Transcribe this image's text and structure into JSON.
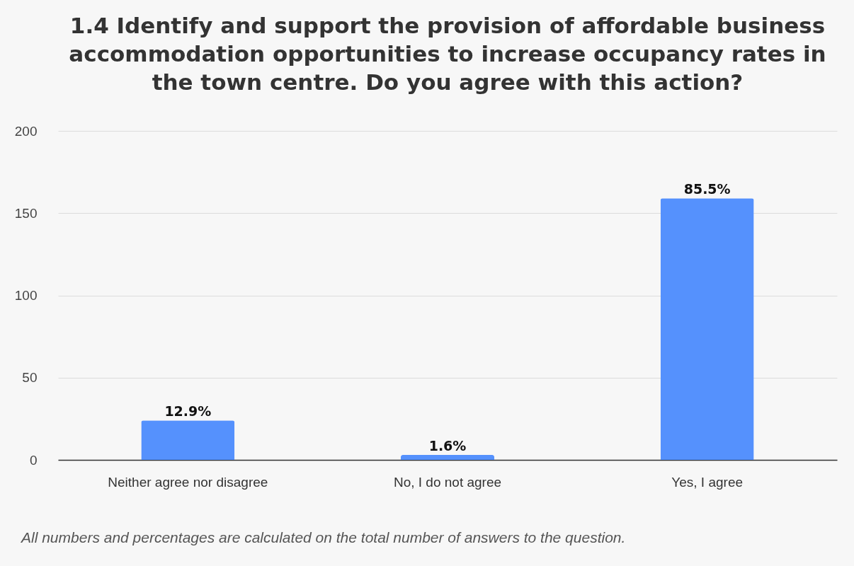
{
  "chart_data": {
    "type": "bar",
    "title": "1.4 Identify and support the provision of affordable business accommodation opportunities to increase occupancy rates in the town centre. Do you agree with this action?",
    "categories": [
      "Neither agree nor disagree",
      "No, I do not agree",
      "Yes, I agree"
    ],
    "values": [
      24,
      3,
      159
    ],
    "color": "#5591fd",
    "ylim": [
      0,
      200
    ],
    "yticks": [
      0,
      50,
      100,
      150,
      200
    ],
    "grid": "y",
    "annotations": [
      {
        "text": "12.9%",
        "x": "Neither agree nor disagree",
        "y": 24
      },
      {
        "text": "1.6%",
        "x": "No, I do not agree",
        "y": 3
      },
      {
        "text": "85.5%",
        "x": "Yes, I agree",
        "y": 159
      },
      "All numbers and percentages are calculated on the total number of answers to the question."
    ]
  }
}
